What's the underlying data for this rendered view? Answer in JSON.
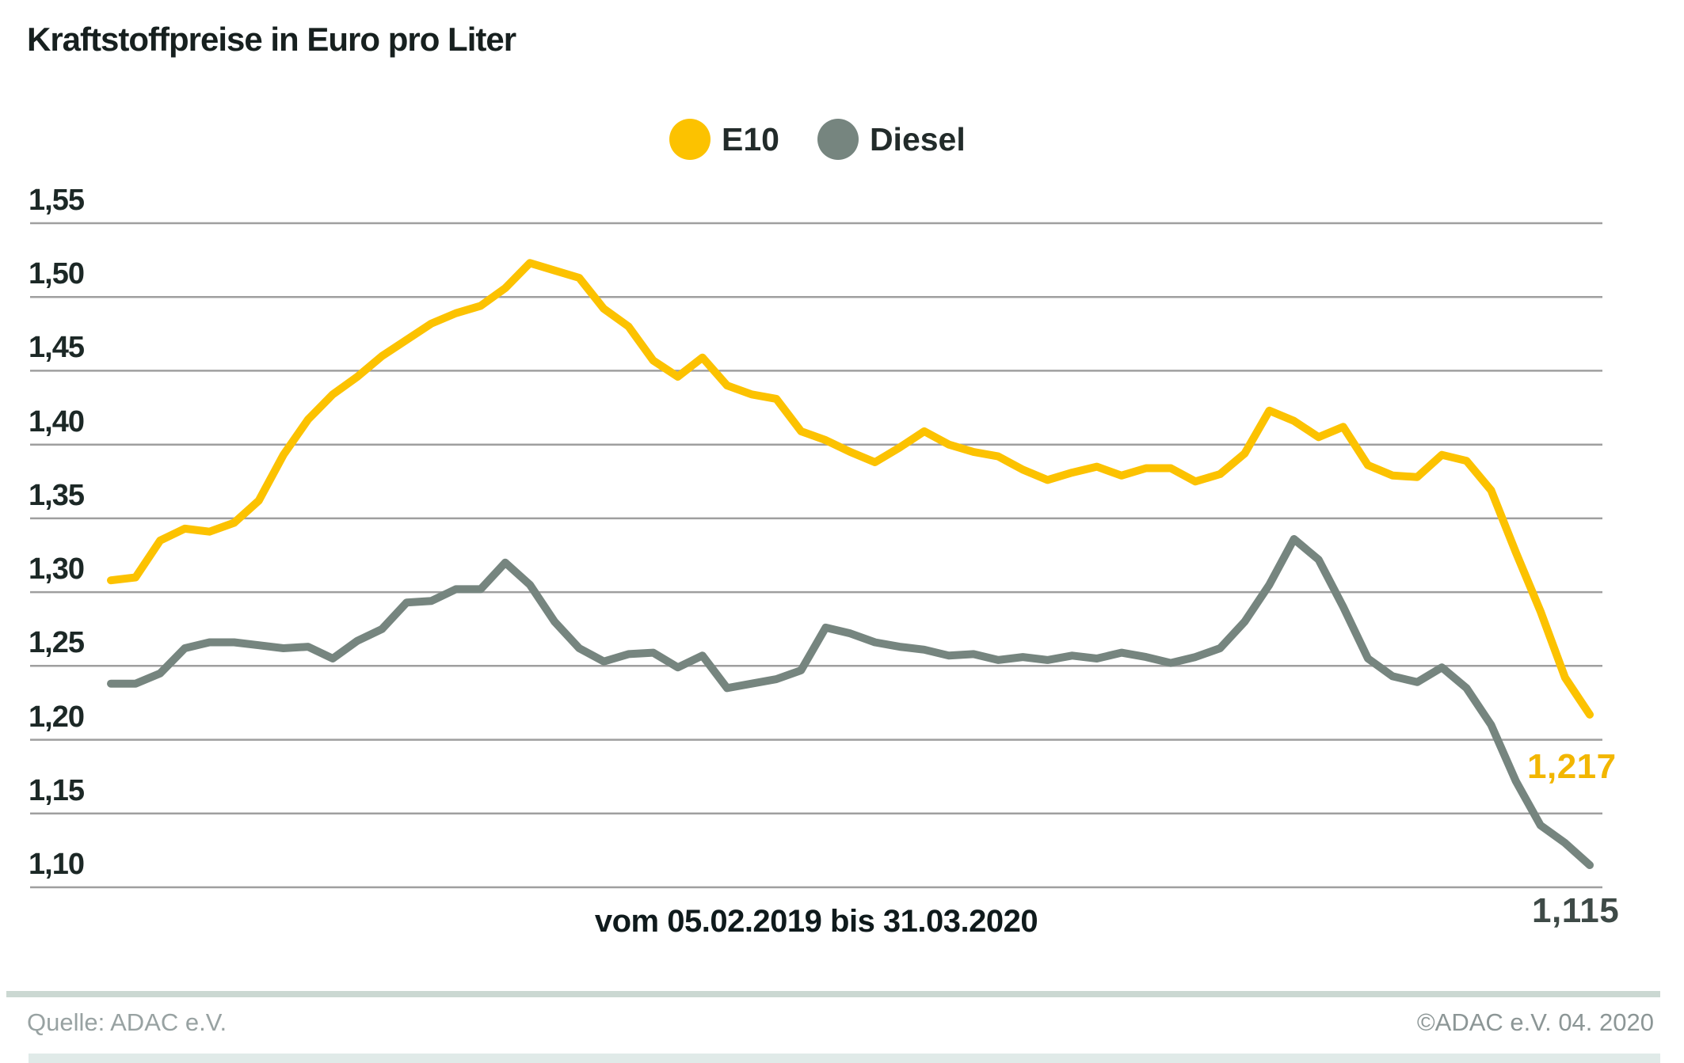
{
  "title": "Kraftstoffpreise in Euro pro Liter",
  "x_axis_label": "vom 05.02.2019 bis 31.03.2020",
  "footer": {
    "source": "Quelle: ADAC e.V.",
    "copyright": "©ADAC e.V.  04. 2020"
  },
  "chart_data": {
    "type": "line",
    "title": "Kraftstoffpreise in Euro pro Liter",
    "ylabel": "Euro pro Liter",
    "xlabel": "vom 05.02.2019 bis 31.03.2020",
    "x_start": "05.02.2019",
    "x_end": "31.03.2020",
    "x_interval": "weekly",
    "ylim": [
      1.1,
      1.55
    ],
    "grid": true,
    "legend_position": "top-center",
    "yticks": [
      "1,55",
      "1,50",
      "1,45",
      "1,40",
      "1,35",
      "1,30",
      "1,25",
      "1,20",
      "1,15",
      "1,10"
    ],
    "ytick_values": [
      1.55,
      1.5,
      1.45,
      1.4,
      1.35,
      1.3,
      1.25,
      1.2,
      1.15,
      1.1
    ],
    "gridline_color": "#9f9f9f",
    "series": [
      {
        "name": "E10",
        "color": "#fcc200",
        "label_color": "#f2b600",
        "final_label": "1,217",
        "final_value": 1.217,
        "values": [
          1.308,
          1.31,
          1.335,
          1.343,
          1.341,
          1.347,
          1.362,
          1.393,
          1.417,
          1.434,
          1.446,
          1.46,
          1.471,
          1.482,
          1.489,
          1.494,
          1.506,
          1.523,
          1.518,
          1.513,
          1.492,
          1.48,
          1.457,
          1.446,
          1.459,
          1.44,
          1.434,
          1.431,
          1.409,
          1.403,
          1.395,
          1.388,
          1.398,
          1.409,
          1.4,
          1.395,
          1.392,
          1.383,
          1.376,
          1.381,
          1.385,
          1.379,
          1.384,
          1.384,
          1.375,
          1.38,
          1.394,
          1.423,
          1.416,
          1.405,
          1.412,
          1.386,
          1.379,
          1.378,
          1.393,
          1.389,
          1.369,
          1.327,
          1.287,
          1.242,
          1.217
        ]
      },
      {
        "name": "Diesel",
        "color": "#76857f",
        "label_color": "#3e4a47",
        "final_label": "1,115",
        "final_value": 1.115,
        "values": [
          1.238,
          1.238,
          1.245,
          1.262,
          1.266,
          1.266,
          1.264,
          1.262,
          1.263,
          1.255,
          1.267,
          1.275,
          1.293,
          1.294,
          1.302,
          1.302,
          1.32,
          1.305,
          1.28,
          1.262,
          1.253,
          1.258,
          1.259,
          1.249,
          1.257,
          1.235,
          1.238,
          1.241,
          1.247,
          1.276,
          1.272,
          1.266,
          1.263,
          1.261,
          1.257,
          1.258,
          1.254,
          1.256,
          1.254,
          1.257,
          1.255,
          1.259,
          1.256,
          1.252,
          1.256,
          1.262,
          1.28,
          1.305,
          1.336,
          1.322,
          1.29,
          1.255,
          1.243,
          1.239,
          1.249,
          1.235,
          1.21,
          1.172,
          1.142,
          1.13,
          1.115
        ]
      }
    ]
  }
}
